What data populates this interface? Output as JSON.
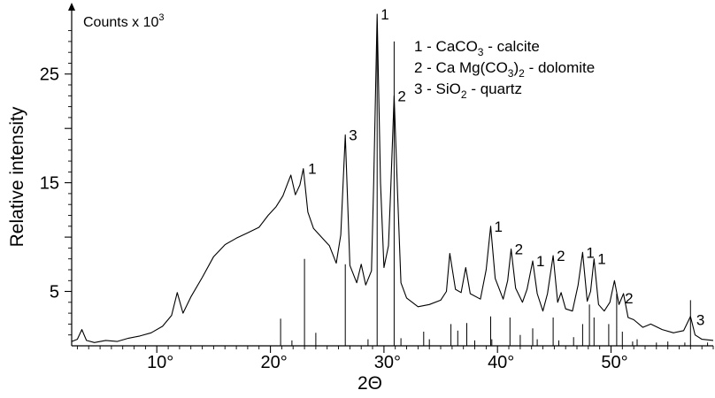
{
  "chart_data": {
    "type": "line",
    "title": "",
    "xlabel": "2Θ",
    "ylabel": "Relative intensity",
    "y_units": "Counts x 10",
    "y_units_exp": "3",
    "xlim": [
      2.5,
      59
    ],
    "ylim": [
      0,
      31
    ],
    "x_ticks": [
      {
        "value": 10,
        "label": "10°"
      },
      {
        "value": 20,
        "label": "20°"
      },
      {
        "value": 30,
        "label": "30°"
      },
      {
        "value": 40,
        "label": "40°"
      },
      {
        "value": 50,
        "label": "50°"
      }
    ],
    "y_ticks": [
      {
        "value": 5,
        "label": "5"
      },
      {
        "value": 15,
        "label": "15"
      },
      {
        "value": 25,
        "label": "25"
      }
    ],
    "grid": false,
    "legend": {
      "placement": "top-right",
      "entries": [
        {
          "parts": [
            {
              "t": "1 - CaCO"
            },
            {
              "t": "3",
              "sub": true
            },
            {
              "t": " - calcite"
            }
          ]
        },
        {
          "parts": [
            {
              "t": "2 - Ca Mg(CO"
            },
            {
              "t": "3",
              "sub": true
            },
            {
              "t": ")"
            },
            {
              "t": "2",
              "sub": true
            },
            {
              "t": " - dolomite"
            }
          ]
        },
        {
          "parts": [
            {
              "t": "3 - SiO"
            },
            {
              "t": "2",
              "sub": true
            },
            {
              "t": " - quartz"
            }
          ]
        }
      ]
    },
    "series": [
      {
        "points": [
          [
            2.5,
            0.4
          ],
          [
            3.0,
            0.6
          ],
          [
            3.4,
            1.5
          ],
          [
            3.8,
            0.5
          ],
          [
            4.5,
            0.3
          ],
          [
            5.5,
            0.5
          ],
          [
            6.5,
            0.4
          ],
          [
            7.5,
            0.7
          ],
          [
            8.5,
            0.9
          ],
          [
            9.5,
            1.2
          ],
          [
            10.5,
            1.8
          ],
          [
            11.3,
            2.8
          ],
          [
            11.8,
            4.9
          ],
          [
            12.3,
            3.0
          ],
          [
            13.0,
            4.5
          ],
          [
            14.0,
            6.3
          ],
          [
            15.0,
            8.2
          ],
          [
            16.0,
            9.3
          ],
          [
            17.0,
            9.9
          ],
          [
            18.0,
            10.4
          ],
          [
            19.0,
            10.9
          ],
          [
            19.8,
            12.0
          ],
          [
            20.5,
            12.8
          ],
          [
            21.1,
            13.8
          ],
          [
            21.5,
            14.9
          ],
          [
            21.8,
            15.7
          ],
          [
            22.2,
            13.9
          ],
          [
            22.6,
            14.8
          ],
          [
            22.9,
            16.3
          ],
          [
            23.3,
            12.3
          ],
          [
            23.8,
            10.8
          ],
          [
            24.5,
            10.0
          ],
          [
            25.2,
            9.2
          ],
          [
            25.8,
            7.6
          ],
          [
            26.2,
            10.2
          ],
          [
            26.6,
            19.4
          ],
          [
            27.0,
            7.4
          ],
          [
            27.6,
            5.8
          ],
          [
            28.0,
            7.5
          ],
          [
            28.4,
            5.6
          ],
          [
            28.9,
            6.9
          ],
          [
            29.1,
            15.0
          ],
          [
            29.4,
            30.5
          ],
          [
            29.7,
            15.0
          ],
          [
            30.0,
            7.2
          ],
          [
            30.4,
            9.2
          ],
          [
            30.6,
            14.5
          ],
          [
            30.9,
            23.0
          ],
          [
            31.2,
            14.0
          ],
          [
            31.5,
            5.8
          ],
          [
            32.0,
            4.4
          ],
          [
            33.0,
            3.6
          ],
          [
            34.0,
            3.8
          ],
          [
            35.0,
            4.2
          ],
          [
            35.5,
            5.0
          ],
          [
            35.8,
            8.5
          ],
          [
            36.3,
            5.2
          ],
          [
            36.8,
            4.9
          ],
          [
            37.2,
            7.2
          ],
          [
            37.6,
            4.8
          ],
          [
            38.5,
            4.3
          ],
          [
            39.0,
            7.0
          ],
          [
            39.4,
            11.0
          ],
          [
            39.8,
            6.2
          ],
          [
            40.5,
            4.3
          ],
          [
            40.9,
            6.0
          ],
          [
            41.2,
            8.9
          ],
          [
            41.6,
            5.3
          ],
          [
            42.2,
            4.0
          ],
          [
            42.6,
            5.2
          ],
          [
            43.1,
            7.8
          ],
          [
            43.5,
            4.8
          ],
          [
            44.0,
            3.2
          ],
          [
            44.4,
            4.8
          ],
          [
            44.9,
            8.3
          ],
          [
            45.3,
            4.0
          ],
          [
            45.6,
            4.9
          ],
          [
            46.0,
            3.4
          ],
          [
            46.6,
            3.2
          ],
          [
            47.1,
            5.6
          ],
          [
            47.5,
            8.6
          ],
          [
            47.9,
            4.1
          ],
          [
            48.2,
            5.0
          ],
          [
            48.5,
            8.0
          ],
          [
            48.9,
            3.8
          ],
          [
            49.4,
            3.2
          ],
          [
            49.9,
            4.0
          ],
          [
            50.3,
            6.0
          ],
          [
            50.7,
            3.8
          ],
          [
            51.1,
            4.8
          ],
          [
            51.5,
            2.6
          ],
          [
            52.0,
            2.4
          ],
          [
            52.8,
            1.7
          ],
          [
            53.5,
            2.0
          ],
          [
            54.5,
            1.5
          ],
          [
            55.5,
            1.2
          ],
          [
            56.4,
            1.4
          ],
          [
            57.0,
            2.7
          ],
          [
            57.4,
            1.0
          ],
          [
            58.0,
            0.6
          ],
          [
            59.0,
            0.5
          ]
        ]
      }
    ],
    "reference_lines": [
      [
        20.9,
        2.5
      ],
      [
        21.9,
        0.5
      ],
      [
        23.0,
        8.0
      ],
      [
        24.0,
        1.2
      ],
      [
        26.6,
        7.5
      ],
      [
        28.6,
        0.6
      ],
      [
        29.4,
        28.5
      ],
      [
        30.9,
        28.0
      ],
      [
        31.5,
        0.7
      ],
      [
        33.5,
        1.3
      ],
      [
        34.0,
        0.6
      ],
      [
        35.9,
        2.0
      ],
      [
        36.5,
        1.4
      ],
      [
        37.3,
        2.1
      ],
      [
        38.0,
        0.5
      ],
      [
        39.4,
        2.7
      ],
      [
        39.5,
        0.6
      ],
      [
        41.1,
        2.6
      ],
      [
        42.0,
        1.0
      ],
      [
        43.1,
        1.6
      ],
      [
        43.5,
        0.6
      ],
      [
        44.9,
        2.6
      ],
      [
        45.4,
        0.5
      ],
      [
        46.7,
        0.8
      ],
      [
        47.5,
        2.0
      ],
      [
        48.1,
        3.8
      ],
      [
        48.5,
        2.6
      ],
      [
        49.8,
        2.0
      ],
      [
        50.5,
        4.8
      ],
      [
        51.0,
        1.3
      ],
      [
        51.9,
        0.4
      ],
      [
        52.3,
        0.6
      ],
      [
        54.0,
        0.3
      ],
      [
        55.0,
        0.4
      ],
      [
        56.5,
        0.3
      ],
      [
        57.0,
        4.2
      ],
      [
        58.5,
        0.3
      ]
    ],
    "peak_labels": [
      {
        "x": 23.0,
        "y": 16.3,
        "label": "1"
      },
      {
        "x": 26.6,
        "y": 19.4,
        "label": "3"
      },
      {
        "x": 29.4,
        "y": 30.5,
        "label": "1"
      },
      {
        "x": 30.9,
        "y": 23.0,
        "label": "2"
      },
      {
        "x": 39.4,
        "y": 11.0,
        "label": "1"
      },
      {
        "x": 41.2,
        "y": 8.9,
        "label": "2"
      },
      {
        "x": 43.1,
        "y": 7.8,
        "label": "1"
      },
      {
        "x": 44.9,
        "y": 8.3,
        "label": "2"
      },
      {
        "x": 47.5,
        "y": 8.6,
        "label": "1"
      },
      {
        "x": 48.5,
        "y": 8.0,
        "label": "1"
      },
      {
        "x": 50.9,
        "y": 4.4,
        "label": "2"
      },
      {
        "x": 57.2,
        "y": 2.4,
        "label": "3"
      }
    ]
  }
}
